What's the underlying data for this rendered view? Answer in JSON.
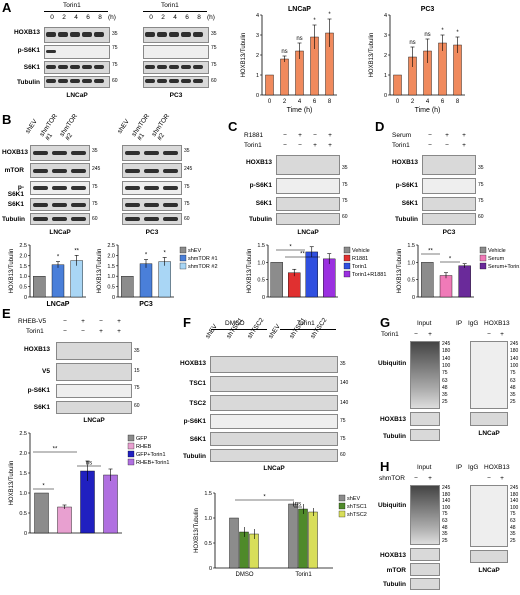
{
  "panel_labels": {
    "A": "A",
    "B": "B",
    "C": "C",
    "D": "D",
    "E": "E",
    "F": "F",
    "G": "G",
    "H": "H"
  },
  "panelA": {
    "treat": "Torin1",
    "lanes": [
      "0",
      "2",
      "4",
      "6",
      "8",
      "(h)"
    ],
    "rows": [
      "HOXB13",
      "p-S6K1",
      "S6K1",
      "Tubulin"
    ],
    "mw_l": [
      "35",
      "75",
      "75",
      "60"
    ],
    "cell_l": "LNCaP",
    "cell_r": "PC3"
  },
  "panelB": {
    "lanes": [
      "shEV",
      "shmTOR #1",
      "shmTOR #2"
    ],
    "rows": [
      "HOXB13",
      "mTOR",
      "p-S6K1",
      "S6K1",
      "Tubulin"
    ],
    "mw": [
      "35",
      "245",
      "75",
      "75",
      "60"
    ],
    "cell_l": "LNCaP",
    "cell_r": "PC3"
  },
  "panelC": {
    "r1881": "R1881",
    "torin": "Torin1",
    "pm1": [
      "−",
      "+",
      "−",
      "+"
    ],
    "pm2": [
      "−",
      "−",
      "+",
      "+"
    ],
    "rows": [
      "HOXB13",
      "p-S6K1",
      "S6K1",
      "Tubulin"
    ],
    "mw": [
      "35",
      "75",
      "75",
      "60"
    ],
    "cell": "LNCaP"
  },
  "panelD": {
    "serum": "Serum",
    "torin": "Torin1",
    "pm1": [
      "−",
      "+",
      "+"
    ],
    "pm2": [
      "−",
      "−",
      "+"
    ],
    "rows": [
      "HOXB13",
      "p-S6K1",
      "S6K1",
      "Tubulin"
    ],
    "mw": [
      "35",
      "75",
      "75",
      "60"
    ],
    "cell": "PC3"
  },
  "panelE": {
    "rheb": "RHEB-V5",
    "torin": "Torin1",
    "pm1": [
      "−",
      "+",
      "−",
      "+"
    ],
    "pm2": [
      "−",
      "−",
      "+",
      "+"
    ],
    "rows": [
      "HOXB13",
      "V5",
      "p-S6K1",
      "S6K1"
    ],
    "mw": [
      "35",
      "15",
      "75",
      "60"
    ],
    "cell": "LNCaP"
  },
  "panelF": {
    "groups": [
      "DMSO",
      "Torin1"
    ],
    "lanes": [
      "shEV",
      "shTSC1",
      "shTSC2",
      "shEV",
      "shTSC1",
      "shTSC2"
    ],
    "rows": [
      "HOXB13",
      "TSC1",
      "TSC2",
      "p-S6K1",
      "S6K1",
      "Tubulin"
    ],
    "mw": [
      "35",
      "140",
      "140",
      "75",
      "75",
      "60"
    ],
    "cell": "LNCaP"
  },
  "panelG": {
    "input": "Input",
    "ip": "IP",
    "igg": "IgG",
    "hox": "HOXB13",
    "torin": "Torin1",
    "pm": [
      "−",
      "+"
    ],
    "rows": [
      "Ubiquitin",
      "HOXB13",
      "Tubulin"
    ],
    "mw": [
      "245",
      "180",
      "140",
      "100",
      "75",
      "63",
      "48",
      "35",
      "25"
    ],
    "mw2": [
      "35",
      "60",
      "35"
    ],
    "cell": "LNCaP"
  },
  "panelH": {
    "input": "Input",
    "ip": "IP",
    "igg": "IgG",
    "hox": "HOXB13",
    "shmtor": "shmTOR",
    "pm": [
      "−",
      "+"
    ],
    "rows": [
      "Ubiquitin",
      "HOXB13",
      "mTOR",
      "Tubulin"
    ],
    "mw": [
      "245",
      "180",
      "140",
      "100",
      "75",
      "63",
      "48",
      "35",
      "25"
    ],
    "mw2": [
      "35",
      "245",
      "60",
      "35"
    ],
    "cell": "LNCaP"
  },
  "chart_data": [
    {
      "id": "A-LNCaP",
      "type": "bar",
      "title": "LNCaP",
      "xlabel": "Time (h)",
      "ylabel": "HOXB13/Tubulin",
      "categories": [
        "0",
        "2",
        "4",
        "6",
        "8"
      ],
      "values": [
        1.0,
        1.8,
        2.2,
        2.9,
        3.1
      ],
      "errors": [
        0,
        0.15,
        0.4,
        0.6,
        0.7
      ],
      "sig": [
        "",
        "ns",
        "ns",
        "*",
        "*"
      ],
      "ylim": [
        0,
        4
      ],
      "yticks": [
        "0",
        "1",
        "2",
        "3",
        "4"
      ],
      "color": "#f08a5d"
    },
    {
      "id": "A-PC3",
      "type": "bar",
      "title": "PC3",
      "xlabel": "Time (h)",
      "ylabel": "HOXB13/Tubulin",
      "categories": [
        "0",
        "2",
        "4",
        "6",
        "8"
      ],
      "values": [
        1.0,
        1.9,
        2.2,
        2.6,
        2.5
      ],
      "errors": [
        0,
        0.5,
        0.6,
        0.4,
        0.4
      ],
      "sig": [
        "",
        "ns",
        "ns",
        "*",
        "*"
      ],
      "ylim": [
        0,
        4
      ],
      "yticks": [
        "0",
        "1",
        "2",
        "3",
        "4"
      ],
      "color": "#f08a5d"
    },
    {
      "id": "B-LNCaP",
      "type": "bar",
      "xlabel": "LNCaP",
      "ylabel": "HOXB13/Tubulin",
      "categories": [
        "shEV",
        "shmTOR #1",
        "shmTOR #2"
      ],
      "values": [
        1.0,
        1.55,
        1.75
      ],
      "errors": [
        0,
        0.15,
        0.25
      ],
      "sig": [
        "",
        "*",
        "**"
      ],
      "ylim": [
        0,
        2.5
      ],
      "yticks": [
        "0",
        "0.5",
        "1.0",
        "1.5",
        "2.0",
        "2.5"
      ],
      "colors": [
        "#8c8c8c",
        "#4a7fd9",
        "#a9d6f5"
      ]
    },
    {
      "id": "B-PC3",
      "type": "bar",
      "xlabel": "PC3",
      "ylabel": "HOXB13/Tubulin",
      "categories": [
        "shEV",
        "shmTOR #1",
        "shmTOR #2"
      ],
      "values": [
        1.0,
        1.6,
        1.7
      ],
      "errors": [
        0,
        0.2,
        0.2
      ],
      "sig": [
        "",
        "*",
        "*"
      ],
      "ylim": [
        0,
        2.5
      ],
      "yticks": [
        "0",
        "0.5",
        "1.0",
        "1.5",
        "2.0",
        "2.5"
      ],
      "colors": [
        "#8c8c8c",
        "#4a7fd9",
        "#a9d6f5"
      ],
      "legend": [
        "shEV",
        "shmTOR #1",
        "shmTOR #2"
      ]
    },
    {
      "id": "C",
      "type": "bar",
      "ylabel": "HOXB13/Tubulin",
      "categories": [
        "Vehicle",
        "R1881",
        "Torin1",
        "Torin1+R1881"
      ],
      "values": [
        1.0,
        0.7,
        1.3,
        1.1
      ],
      "errors": [
        0,
        0.1,
        0.15,
        0.15
      ],
      "ylim": [
        0,
        1.5
      ],
      "yticks": [
        "0",
        "0.5",
        "1.0",
        "1.5"
      ],
      "colors": [
        "#8c8c8c",
        "#e03030",
        "#2f4fe0",
        "#9b30e0"
      ],
      "legend": [
        "Vehicle",
        "R1881",
        "Torin1",
        "Torin1+R1881"
      ]
    },
    {
      "id": "D",
      "type": "bar",
      "ylabel": "HOXB13/Tubulin",
      "categories": [
        "Vehicle",
        "Serum",
        "Serum+Torin1"
      ],
      "values": [
        1.0,
        0.62,
        0.9
      ],
      "errors": [
        0,
        0.08,
        0.06
      ],
      "ylim": [
        0,
        1.5
      ],
      "yticks": [
        "0",
        "0.5",
        "1.0",
        "1.5"
      ],
      "colors": [
        "#8c8c8c",
        "#f07ab8",
        "#6a2a9a"
      ],
      "legend": [
        "Vehicle",
        "Serum",
        "Serum+Torin1"
      ]
    },
    {
      "id": "E",
      "type": "bar",
      "ylabel": "HOXB13/Tubulin",
      "categories": [
        "GFP",
        "RHEB",
        "GFP+Torin1",
        "RHEB+Torin1"
      ],
      "values": [
        1.0,
        0.65,
        1.55,
        1.45
      ],
      "errors": [
        0,
        0.05,
        0.25,
        0.15
      ],
      "ylim": [
        0,
        2.5
      ],
      "yticks": [
        "0",
        "0.5",
        "1.0",
        "1.5",
        "2.0",
        "2.5"
      ],
      "colors": [
        "#8c8c8c",
        "#e8a0d0",
        "#2020c0",
        "#b070e0"
      ],
      "legend": [
        "GFP",
        "RHEB",
        "GFP+Torin1",
        "RHEB+Torin1"
      ]
    },
    {
      "id": "F",
      "type": "bar",
      "ylabel": "HOXB13/Tubulin",
      "categories": [
        "DMSO",
        "Torin1"
      ],
      "series": [
        {
          "name": "shEV",
          "values": [
            1.0,
            1.28
          ],
          "errors": [
            0,
            0.05
          ]
        },
        {
          "name": "shTSC1",
          "values": [
            0.72,
            1.18
          ],
          "errors": [
            0.1,
            0.1
          ]
        },
        {
          "name": "shTSC2",
          "values": [
            0.68,
            1.12
          ],
          "errors": [
            0.1,
            0.08
          ]
        }
      ],
      "ylim": [
        0,
        1.5
      ],
      "yticks": [
        "0",
        "0.5",
        "1.0",
        "1.5"
      ],
      "colors": [
        "#8c8c8c",
        "#4f8a2a",
        "#d8de5a"
      ],
      "legend": [
        "shEV",
        "shTSC1",
        "shTSC2"
      ]
    }
  ],
  "sig_marks": {
    "C": [
      "*",
      "**"
    ],
    "D": [
      "**",
      "*"
    ],
    "E": [
      "**",
      "*",
      "ns"
    ],
    "F": [
      "*",
      "ns"
    ]
  }
}
